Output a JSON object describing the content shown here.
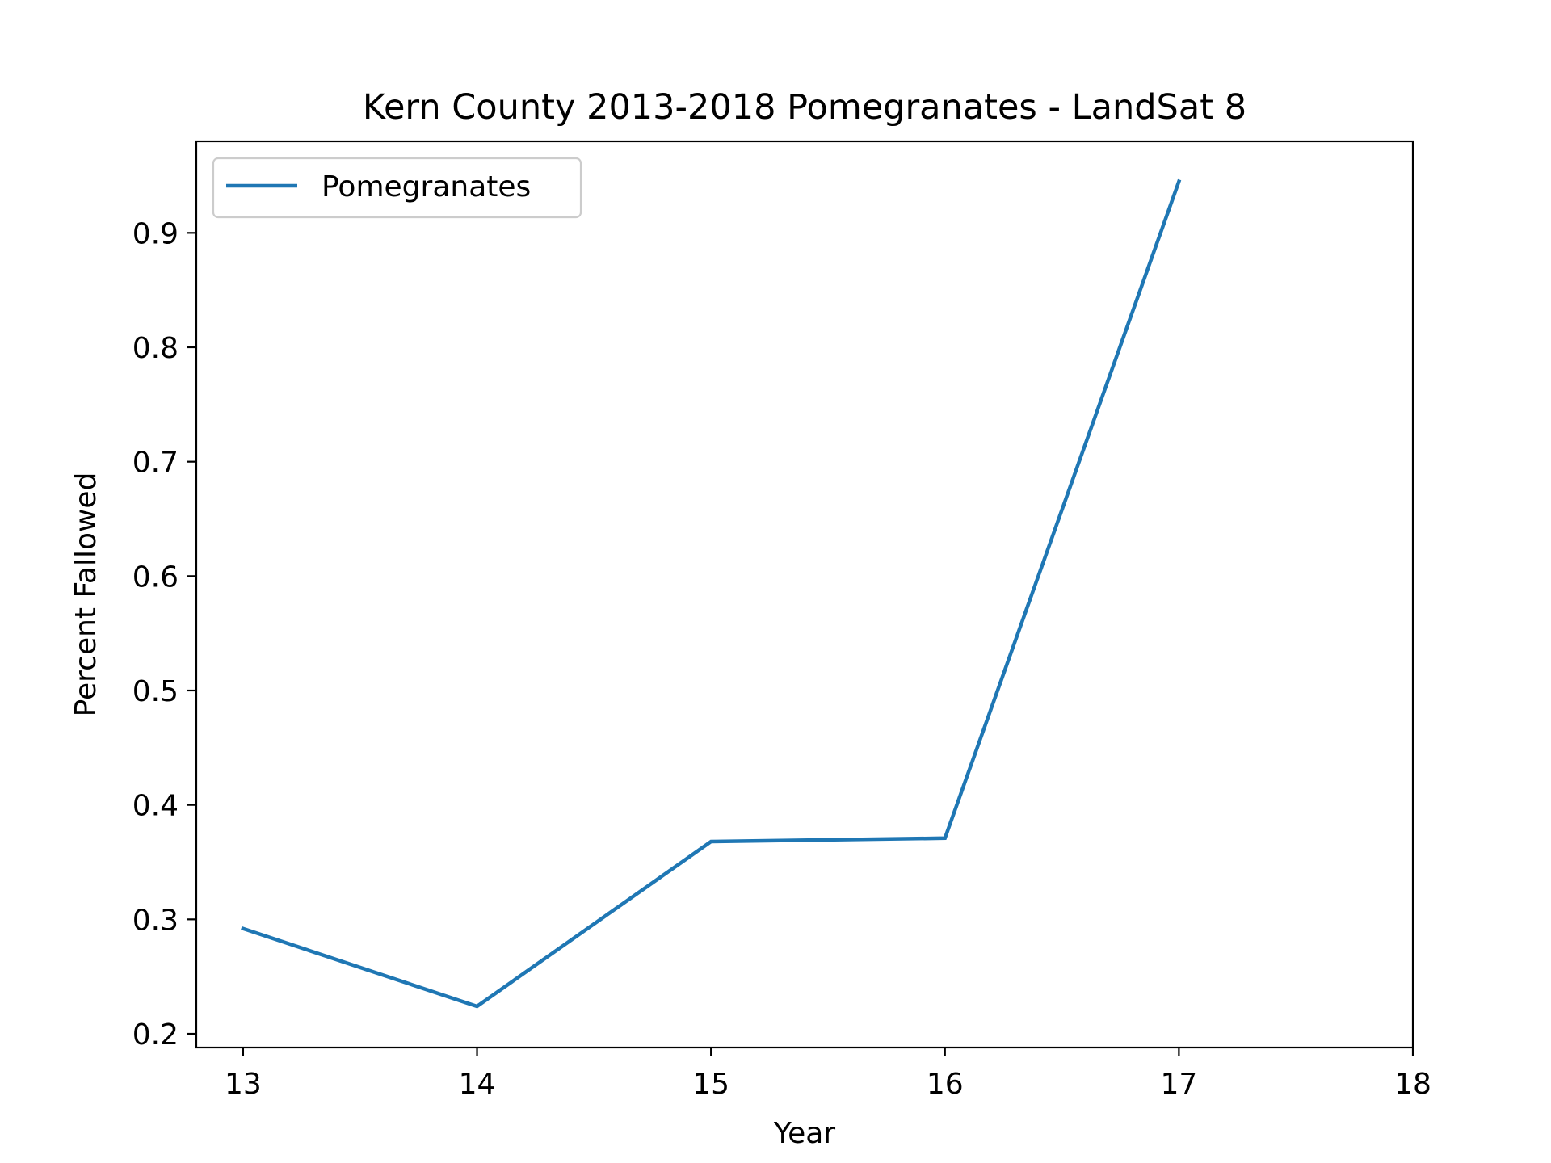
{
  "chart_data": {
    "type": "line",
    "title": "Kern County 2013-2018 Pomegranates - LandSat 8",
    "xlabel": "Year",
    "ylabel": "Percent Fallowed",
    "xlim": [
      12.8,
      18
    ],
    "ylim": [
      0.188,
      0.98
    ],
    "x_ticks": [
      13,
      14,
      15,
      16,
      17,
      18
    ],
    "x_tick_labels": [
      "13",
      "14",
      "15",
      "16",
      "17",
      "18"
    ],
    "y_ticks": [
      0.2,
      0.3,
      0.4,
      0.5,
      0.6,
      0.7,
      0.8,
      0.9
    ],
    "y_tick_labels": [
      "0.2",
      "0.3",
      "0.4",
      "0.5",
      "0.6",
      "0.7",
      "0.8",
      "0.9"
    ],
    "grid": false,
    "legend_position": "top-left",
    "series": [
      {
        "name": "Pomegranates",
        "color": "#1f77b4",
        "x": [
          13,
          14,
          15,
          16,
          17
        ],
        "y": [
          0.292,
          0.224,
          0.368,
          0.371,
          0.945
        ]
      }
    ]
  }
}
